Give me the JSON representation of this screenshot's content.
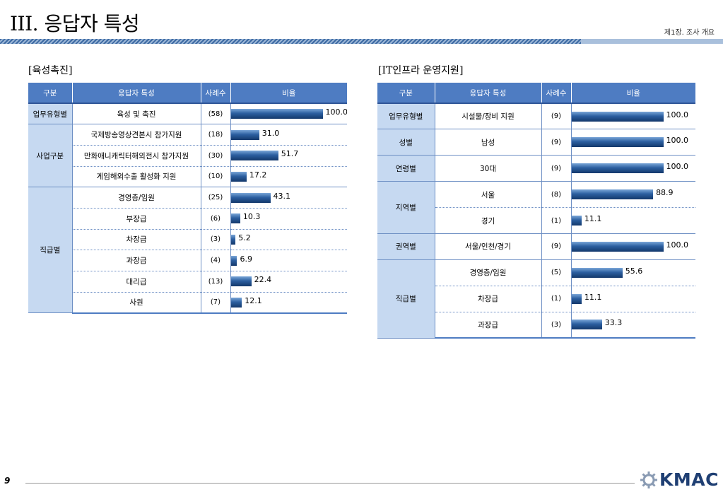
{
  "header": {
    "title": "III. 응답자 특성",
    "chapter": "제1장. 조사 개요"
  },
  "footer": {
    "page": "9",
    "logo_text": "KMAC"
  },
  "columns": {
    "group": "구분",
    "attr": "응답자 특성",
    "count": "사례수",
    "ratio": "비율"
  },
  "chart_data": [
    {
      "type": "table",
      "title": "[육성촉진]",
      "xlim": [
        0,
        100
      ],
      "rows": [
        {
          "group": "업무유형별",
          "span": 1,
          "label": "육성 및 촉진",
          "count": "(58)",
          "value": 100.0,
          "value_label": "100.0"
        },
        {
          "group": "사업구분",
          "span": 3,
          "label": "국제방송영상견본시 참가지원",
          "count": "(18)",
          "value": 31.0,
          "value_label": "31.0"
        },
        {
          "label": "만화애니캐릭터해외전시 참가지원",
          "count": "(30)",
          "value": 51.7,
          "value_label": "51.7"
        },
        {
          "label": "게임해외수출 활성화 지원",
          "count": "(10)",
          "value": 17.2,
          "value_label": "17.2"
        },
        {
          "group": "직급별",
          "span": 6,
          "label": "경영층/임원",
          "count": "(25)",
          "value": 43.1,
          "value_label": "43.1"
        },
        {
          "label": "부장급",
          "count": "(6)",
          "value": 10.3,
          "value_label": "10.3"
        },
        {
          "label": "차장급",
          "count": "(3)",
          "value": 5.2,
          "value_label": "5.2"
        },
        {
          "label": "과장급",
          "count": "(4)",
          "value": 6.9,
          "value_label": "6.9"
        },
        {
          "label": "대리급",
          "count": "(13)",
          "value": 22.4,
          "value_label": "22.4"
        },
        {
          "label": "사원",
          "count": "(7)",
          "value": 12.1,
          "value_label": "12.1"
        }
      ]
    },
    {
      "type": "table",
      "title": "[IT인프라 운영지원]",
      "xlim": [
        0,
        100
      ],
      "rows": [
        {
          "group": "업무유형별",
          "span": 1,
          "label": "시설물/장비 지원",
          "count": "(9)",
          "value": 100.0,
          "value_label": "100.0"
        },
        {
          "group": "성별",
          "span": 1,
          "label": "남성",
          "count": "(9)",
          "value": 100.0,
          "value_label": "100.0"
        },
        {
          "group": "연령별",
          "span": 1,
          "label": "30대",
          "count": "(9)",
          "value": 100.0,
          "value_label": "100.0"
        },
        {
          "group": "지역별",
          "span": 2,
          "label": "서울",
          "count": "(8)",
          "value": 88.9,
          "value_label": "88.9"
        },
        {
          "label": "경기",
          "count": "(1)",
          "value": 11.1,
          "value_label": "11.1"
        },
        {
          "group": "권역별",
          "span": 1,
          "label": "서울/인천/경기",
          "count": "(9)",
          "value": 100.0,
          "value_label": "100.0"
        },
        {
          "group": "직급별",
          "span": 3,
          "label": "경영층/임원",
          "count": "(5)",
          "value": 55.6,
          "value_label": "55.6"
        },
        {
          "label": "차장급",
          "count": "(1)",
          "value": 11.1,
          "value_label": "11.1"
        },
        {
          "label": "과장급",
          "count": "(3)",
          "value": 33.3,
          "value_label": "33.3"
        }
      ]
    }
  ]
}
